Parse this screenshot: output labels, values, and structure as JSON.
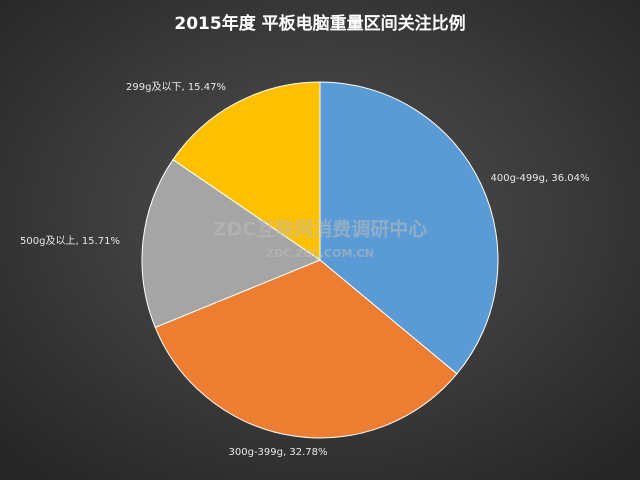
{
  "chart_data": {
    "type": "pie",
    "title": "2015年度 平板电脑重量区间关注比例",
    "labels": [
      "400g-499g, 36.04%",
      "300g-399g, 32.78%",
      "500g及以上, 15.71%",
      "299g及以下, 15.47%"
    ],
    "values": [
      36.04,
      32.78,
      15.71,
      15.47
    ],
    "colors": [
      "#5b9bd5",
      "#ed7d31",
      "#a5a5a5",
      "#ffc000"
    ],
    "watermark": [
      "ZDC互联网消费调研中心",
      "ZDC.ZOL.COM.CN"
    ]
  }
}
